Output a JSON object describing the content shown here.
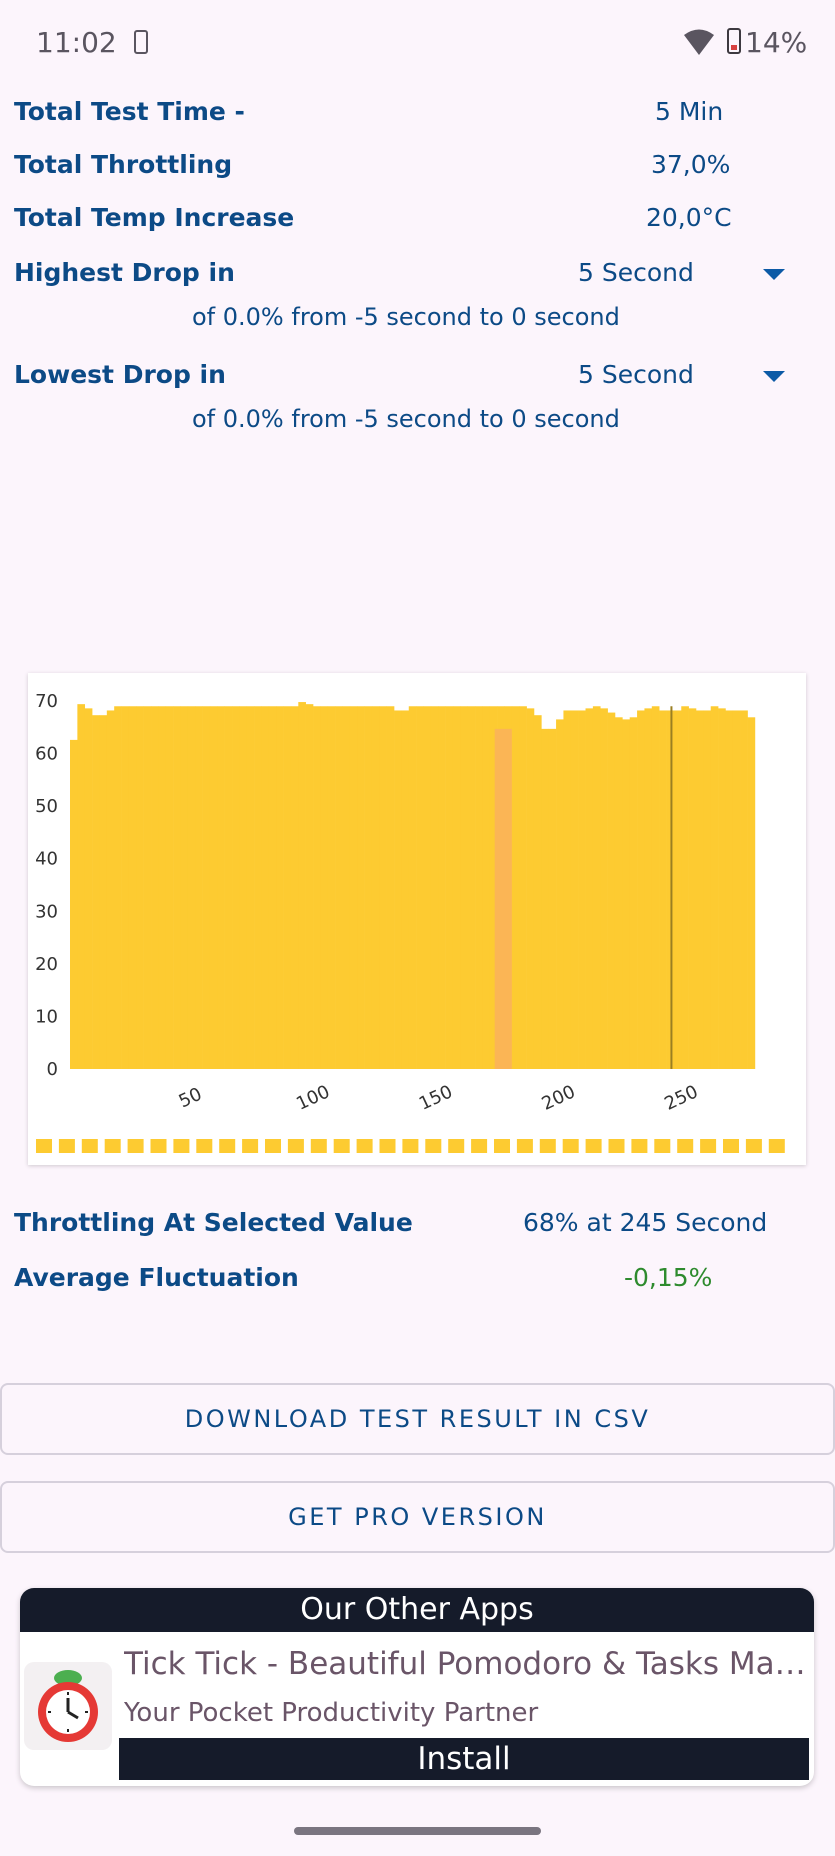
{
  "status_bar": {
    "time": "11:02",
    "battery": "14%"
  },
  "summary": {
    "total_test_time": {
      "label": "Total Test Time -",
      "value": "5 Min"
    },
    "total_throttling": {
      "label": "Total Throttling",
      "value": "37,0%"
    },
    "total_temp_increase": {
      "label": "Total Temp Increase",
      "value": "20,0°C"
    }
  },
  "highest_drop": {
    "label": "Highest Drop in",
    "selected": "5 Second",
    "detail": "of 0.0% from -5 second to  0 second"
  },
  "lowest_drop": {
    "label": "Lowest Drop in",
    "selected": "5 Second",
    "detail": "of 0.0% from -5 second to  0 second"
  },
  "chart_data": {
    "type": "bar",
    "title": "",
    "xlabel": "",
    "ylabel": "",
    "ylim": [
      0,
      70
    ],
    "xlim": [
      0,
      288
    ],
    "y_ticks": [
      0,
      10,
      20,
      30,
      40,
      50,
      60,
      70
    ],
    "x_ticks": [
      50,
      100,
      150,
      200,
      250
    ],
    "x": [
      0,
      3,
      6,
      9,
      12,
      15,
      18,
      21,
      24,
      27,
      30,
      33,
      36,
      39,
      42,
      45,
      48,
      51,
      54,
      57,
      60,
      63,
      66,
      69,
      72,
      75,
      78,
      81,
      84,
      87,
      90,
      93,
      96,
      99,
      102,
      105,
      108,
      111,
      114,
      117,
      120,
      123,
      126,
      129,
      132,
      135,
      138,
      141,
      144,
      147,
      150,
      153,
      156,
      159,
      162,
      165,
      168,
      171,
      174,
      177,
      180,
      183,
      186,
      189,
      192,
      195,
      198,
      201,
      204,
      207,
      210,
      213,
      216,
      219,
      222,
      225,
      228,
      231,
      234,
      237,
      240,
      243,
      246,
      249,
      252,
      255,
      258,
      261,
      264,
      267,
      270,
      273,
      276
    ],
    "values": [
      62.6,
      69.4,
      68.6,
      67.3,
      67.3,
      68.2,
      69.0,
      69.0,
      69.0,
      69.0,
      69.0,
      69.0,
      69.0,
      69.0,
      69.0,
      69.0,
      69.0,
      69.0,
      69.0,
      69.0,
      69.0,
      69.0,
      69.0,
      69.0,
      69.0,
      69.0,
      69.0,
      69.0,
      69.0,
      69.0,
      69.0,
      69.8,
      69.4,
      69.0,
      69.0,
      69.0,
      69.0,
      69.0,
      69.0,
      69.0,
      69.0,
      69.0,
      69.0,
      69.0,
      68.2,
      68.2,
      69.0,
      69.0,
      69.0,
      69.0,
      69.0,
      69.0,
      69.0,
      69.0,
      69.0,
      69.0,
      69.0,
      69.0,
      69.0,
      69.0,
      69.0,
      69.0,
      68.6,
      67.3,
      64.7,
      64.7,
      66.5,
      68.2,
      68.2,
      68.2,
      68.6,
      69.0,
      68.6,
      67.8,
      66.9,
      66.5,
      66.9,
      68.2,
      68.6,
      69.0,
      68.2,
      68.2,
      68.2,
      69.0,
      68.6,
      68.2,
      68.2,
      69.0,
      68.6,
      68.2,
      68.2,
      68.2,
      66.9
    ],
    "highlighted_range": [
      173,
      180
    ],
    "selected_x": 245,
    "colors": {
      "bar": "#fdcb31",
      "highlight": "#fbb555",
      "selected": "#9a7f22"
    }
  },
  "results": {
    "throttling_selected": {
      "label": "Throttling At Selected Value",
      "value": "68% at 245 Second"
    },
    "average_fluctuation": {
      "label": "Average Fluctuation",
      "value": "-0,15%",
      "color": "#2e8b2e"
    }
  },
  "buttons": {
    "download_csv": "DOWNLOAD TEST RESULT IN CSV",
    "get_pro": "GET PRO VERSION"
  },
  "other_apps": {
    "header": "Our Other Apps",
    "app_title": "Tick Tick - Beautiful Pomodoro & Tasks Man...",
    "app_subtitle": "Your Pocket Productivity Partner",
    "install_label": "Install",
    "app_icon": "stopwatch-icon"
  }
}
